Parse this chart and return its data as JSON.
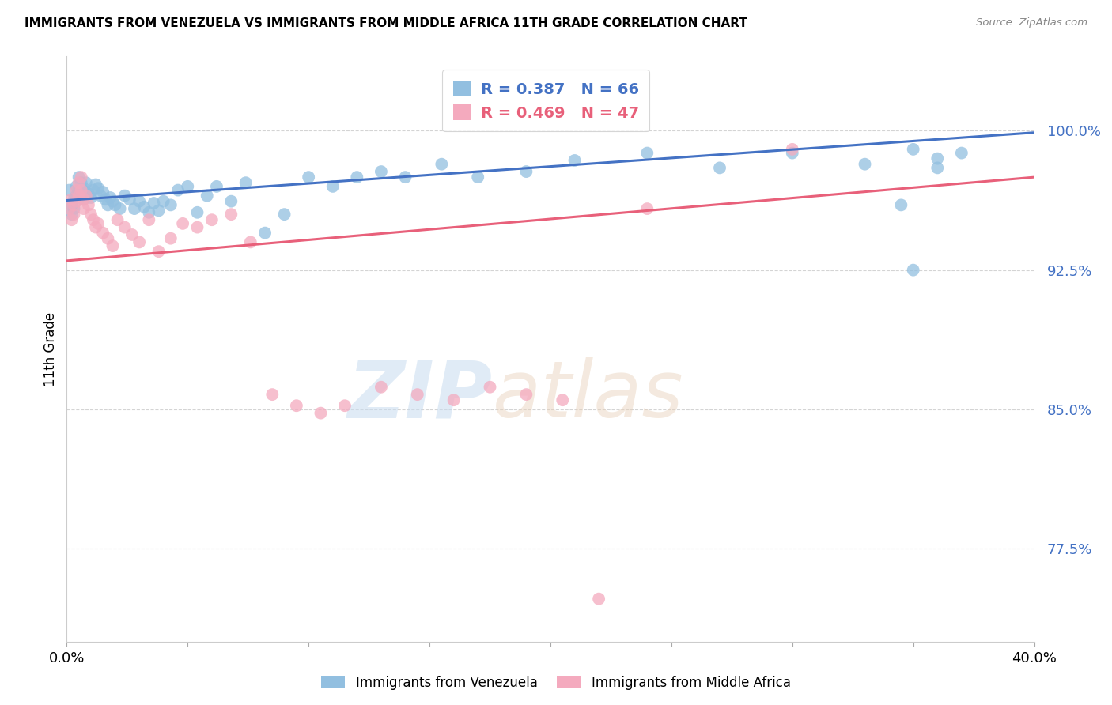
{
  "title": "IMMIGRANTS FROM VENEZUELA VS IMMIGRANTS FROM MIDDLE AFRICA 11TH GRADE CORRELATION CHART",
  "source": "Source: ZipAtlas.com",
  "ylabel": "11th Grade",
  "xlim": [
    0.0,
    0.4
  ],
  "ylim": [
    0.725,
    1.04
  ],
  "yticks": [
    0.775,
    0.85,
    0.925,
    1.0
  ],
  "ytick_labels": [
    "77.5%",
    "85.0%",
    "92.5%",
    "100.0%"
  ],
  "xtick_vals": [
    0.0,
    0.05,
    0.1,
    0.15,
    0.2,
    0.25,
    0.3,
    0.35,
    0.4
  ],
  "xtick_labels": [
    "0.0%",
    "",
    "",
    "",
    "",
    "",
    "",
    "",
    "40.0%"
  ],
  "venezuela_R": 0.387,
  "venezuela_N": 66,
  "middle_africa_R": 0.469,
  "middle_africa_N": 47,
  "venezuela_color": "#92BFE0",
  "middle_africa_color": "#F4AABE",
  "venezuela_line_color": "#4472C4",
  "middle_africa_line_color": "#E8607A",
  "watermark_zip": "ZIP",
  "watermark_atlas": "atlas",
  "venezuela_x": [
    0.001,
    0.002,
    0.002,
    0.003,
    0.003,
    0.004,
    0.004,
    0.005,
    0.005,
    0.006,
    0.006,
    0.007,
    0.007,
    0.008,
    0.008,
    0.009,
    0.01,
    0.011,
    0.012,
    0.013,
    0.014,
    0.015,
    0.016,
    0.017,
    0.018,
    0.019,
    0.02,
    0.022,
    0.024,
    0.026,
    0.028,
    0.03,
    0.032,
    0.034,
    0.036,
    0.038,
    0.04,
    0.043,
    0.046,
    0.05,
    0.054,
    0.058,
    0.062,
    0.068,
    0.074,
    0.082,
    0.09,
    0.1,
    0.11,
    0.12,
    0.13,
    0.14,
    0.155,
    0.17,
    0.19,
    0.21,
    0.24,
    0.27,
    0.3,
    0.33,
    0.35,
    0.36,
    0.37,
    0.36,
    0.35,
    0.345
  ],
  "venezuela_y": [
    0.968,
    0.96,
    0.955,
    0.963,
    0.958,
    0.97,
    0.965,
    0.975,
    0.968,
    0.972,
    0.965,
    0.969,
    0.963,
    0.972,
    0.967,
    0.966,
    0.964,
    0.968,
    0.971,
    0.969,
    0.965,
    0.967,
    0.963,
    0.96,
    0.964,
    0.962,
    0.96,
    0.958,
    0.965,
    0.963,
    0.958,
    0.962,
    0.959,
    0.956,
    0.961,
    0.957,
    0.962,
    0.96,
    0.968,
    0.97,
    0.956,
    0.965,
    0.97,
    0.962,
    0.972,
    0.945,
    0.955,
    0.975,
    0.97,
    0.975,
    0.978,
    0.975,
    0.982,
    0.975,
    0.978,
    0.984,
    0.988,
    0.98,
    0.988,
    0.982,
    0.99,
    0.98,
    0.988,
    0.985,
    0.925,
    0.96
  ],
  "middle_africa_x": [
    0.001,
    0.002,
    0.002,
    0.003,
    0.003,
    0.004,
    0.004,
    0.005,
    0.005,
    0.006,
    0.006,
    0.007,
    0.007,
    0.008,
    0.009,
    0.01,
    0.011,
    0.012,
    0.013,
    0.015,
    0.017,
    0.019,
    0.021,
    0.024,
    0.027,
    0.03,
    0.034,
    0.038,
    0.043,
    0.048,
    0.054,
    0.06,
    0.068,
    0.076,
    0.085,
    0.095,
    0.105,
    0.115,
    0.13,
    0.145,
    0.16,
    0.175,
    0.19,
    0.205,
    0.22,
    0.24,
    0.3
  ],
  "middle_africa_y": [
    0.958,
    0.952,
    0.963,
    0.96,
    0.955,
    0.968,
    0.962,
    0.972,
    0.965,
    0.975,
    0.968,
    0.958,
    0.963,
    0.965,
    0.96,
    0.955,
    0.952,
    0.948,
    0.95,
    0.945,
    0.942,
    0.938,
    0.952,
    0.948,
    0.944,
    0.94,
    0.952,
    0.935,
    0.942,
    0.95,
    0.948,
    0.952,
    0.955,
    0.94,
    0.858,
    0.852,
    0.848,
    0.852,
    0.862,
    0.858,
    0.855,
    0.862,
    0.858,
    0.855,
    0.748,
    0.958,
    0.99
  ],
  "venezuela_line_x0": 0.0,
  "venezuela_line_y0": 0.9625,
  "venezuela_line_x1": 0.4,
  "venezuela_line_y1": 0.999,
  "maf_line_x0": 0.0,
  "maf_line_y0": 0.93,
  "maf_line_x1": 0.4,
  "maf_line_y1": 0.975
}
